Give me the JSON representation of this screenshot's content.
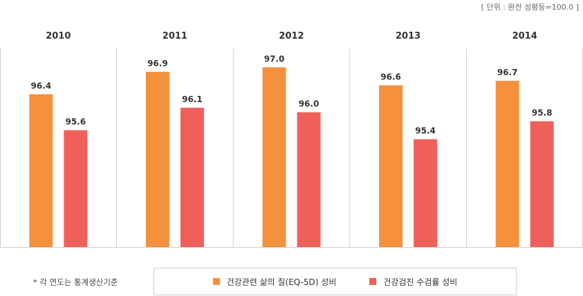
{
  "unit_label": "[ 단위 : 완전 성평등=100.0 ]",
  "footnote": "* 각 연도는 통계생산기준",
  "colors": {
    "series1": "#f5903d",
    "series2": "#f0605a",
    "axis": "#cccccc",
    "label": "#333333"
  },
  "chart_data": {
    "type": "bar",
    "title": "",
    "xlabel": "",
    "ylabel": "",
    "categories": [
      "2010",
      "2011",
      "2012",
      "2013",
      "2014"
    ],
    "series": [
      {
        "name": "건강관련 삶의 질(EQ-5D) 성비",
        "values": [
          96.4,
          96.9,
          97.0,
          96.6,
          96.7
        ]
      },
      {
        "name": "건강검진 수검률 성비",
        "values": [
          95.6,
          96.1,
          96.0,
          95.4,
          95.8
        ]
      }
    ],
    "value_labels": [
      [
        "96.4",
        "96.9",
        "97.0",
        "96.6",
        "96.7"
      ],
      [
        "95.6",
        "96.1",
        "96.0",
        "95.4",
        "95.8"
      ]
    ],
    "ylim": [
      93.0,
      97.5
    ],
    "grid": false,
    "legend_position": "bottom"
  }
}
